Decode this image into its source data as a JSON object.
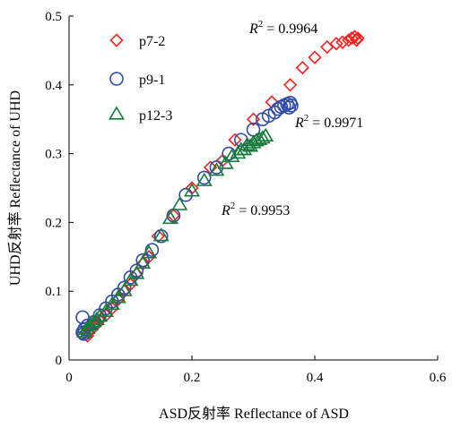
{
  "chart_data": {
    "type": "scatter",
    "xlabel": "ASD反射率 Reflectance of ASD",
    "ylabel": "UHD反射率 Reflectance of UHD",
    "xlim": [
      0,
      0.6
    ],
    "ylim": [
      0,
      0.5
    ],
    "xticks": [
      "0",
      "0.2",
      "0.4",
      "0.6"
    ],
    "yticks": [
      "0",
      "0.1",
      "0.2",
      "0.3",
      "0.4",
      "0.5"
    ],
    "grid": false,
    "legend_position": "top-left",
    "series": [
      {
        "name": "p7-2",
        "marker": "diamond",
        "color": "#ff2020",
        "r2_label": "R² = 0.9964",
        "points": [
          [
            0.03,
            0.035
          ],
          [
            0.032,
            0.04
          ],
          [
            0.035,
            0.043
          ],
          [
            0.04,
            0.048
          ],
          [
            0.045,
            0.052
          ],
          [
            0.05,
            0.058
          ],
          [
            0.06,
            0.065
          ],
          [
            0.07,
            0.075
          ],
          [
            0.08,
            0.088
          ],
          [
            0.09,
            0.1
          ],
          [
            0.1,
            0.11
          ],
          [
            0.11,
            0.125
          ],
          [
            0.12,
            0.14
          ],
          [
            0.13,
            0.15
          ],
          [
            0.145,
            0.18
          ],
          [
            0.17,
            0.21
          ],
          [
            0.2,
            0.25
          ],
          [
            0.23,
            0.28
          ],
          [
            0.25,
            0.29
          ],
          [
            0.27,
            0.32
          ],
          [
            0.3,
            0.35
          ],
          [
            0.33,
            0.375
          ],
          [
            0.36,
            0.4
          ],
          [
            0.38,
            0.425
          ],
          [
            0.4,
            0.44
          ],
          [
            0.42,
            0.455
          ],
          [
            0.435,
            0.46
          ],
          [
            0.445,
            0.462
          ],
          [
            0.455,
            0.465
          ],
          [
            0.46,
            0.468
          ],
          [
            0.465,
            0.47
          ],
          [
            0.47,
            0.468
          ],
          [
            0.468,
            0.465
          ]
        ]
      },
      {
        "name": "p9-1",
        "marker": "circle",
        "color": "#2f4ba8",
        "r2_label": "R² = 0.9971",
        "points": [
          [
            0.022,
            0.062
          ],
          [
            0.025,
            0.045
          ],
          [
            0.03,
            0.05
          ],
          [
            0.04,
            0.055
          ],
          [
            0.05,
            0.065
          ],
          [
            0.06,
            0.075
          ],
          [
            0.07,
            0.085
          ],
          [
            0.08,
            0.095
          ],
          [
            0.09,
            0.105
          ],
          [
            0.1,
            0.12
          ],
          [
            0.11,
            0.13
          ],
          [
            0.12,
            0.145
          ],
          [
            0.135,
            0.16
          ],
          [
            0.15,
            0.18
          ],
          [
            0.17,
            0.21
          ],
          [
            0.19,
            0.24
          ],
          [
            0.22,
            0.265
          ],
          [
            0.24,
            0.28
          ],
          [
            0.26,
            0.3
          ],
          [
            0.28,
            0.32
          ],
          [
            0.3,
            0.335
          ],
          [
            0.315,
            0.35
          ],
          [
            0.325,
            0.355
          ],
          [
            0.335,
            0.36
          ],
          [
            0.34,
            0.365
          ],
          [
            0.345,
            0.368
          ],
          [
            0.35,
            0.37
          ],
          [
            0.355,
            0.372
          ],
          [
            0.36,
            0.374
          ],
          [
            0.362,
            0.37
          ],
          [
            0.358,
            0.367
          ],
          [
            0.022,
            0.04
          ],
          [
            0.024,
            0.038
          ]
        ]
      },
      {
        "name": "p12-3",
        "marker": "triangle",
        "color": "#157a3a",
        "r2_label": "R² = 0.9953",
        "points": [
          [
            0.025,
            0.04
          ],
          [
            0.03,
            0.045
          ],
          [
            0.035,
            0.05
          ],
          [
            0.04,
            0.055
          ],
          [
            0.045,
            0.058
          ],
          [
            0.05,
            0.063
          ],
          [
            0.06,
            0.07
          ],
          [
            0.07,
            0.08
          ],
          [
            0.08,
            0.09
          ],
          [
            0.09,
            0.1
          ],
          [
            0.1,
            0.115
          ],
          [
            0.11,
            0.125
          ],
          [
            0.12,
            0.14
          ],
          [
            0.13,
            0.155
          ],
          [
            0.15,
            0.18
          ],
          [
            0.165,
            0.205
          ],
          [
            0.18,
            0.225
          ],
          [
            0.2,
            0.245
          ],
          [
            0.22,
            0.26
          ],
          [
            0.24,
            0.275
          ],
          [
            0.255,
            0.285
          ],
          [
            0.265,
            0.295
          ],
          [
            0.275,
            0.3
          ],
          [
            0.285,
            0.305
          ],
          [
            0.295,
            0.31
          ],
          [
            0.3,
            0.315
          ],
          [
            0.305,
            0.318
          ],
          [
            0.31,
            0.32
          ],
          [
            0.315,
            0.322
          ],
          [
            0.32,
            0.325
          ],
          [
            0.29,
            0.312
          ],
          [
            0.28,
            0.305
          ]
        ]
      }
    ]
  }
}
